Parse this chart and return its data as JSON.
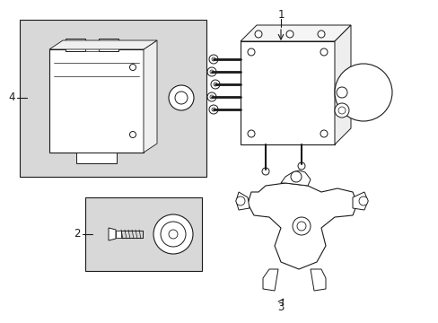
{
  "background_color": "#ffffff",
  "line_color": "#1a1a1a",
  "gray_fill": "#d8d8d8",
  "white": "#ffffff",
  "fig_width": 4.89,
  "fig_height": 3.6,
  "dpi": 100,
  "label1": "1",
  "label2": "2",
  "label3": "3",
  "label4": "4",
  "font_size": 8.5
}
